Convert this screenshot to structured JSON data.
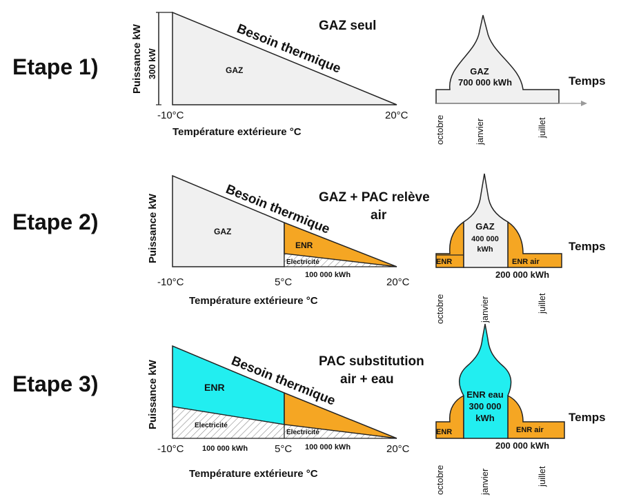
{
  "stages": [
    {
      "name": "Etape 1)",
      "title": [
        "GAZ seul"
      ],
      "y_axis": "Puissance kW",
      "scale_label": "300 kW",
      "besoin": "Besoin thermique",
      "x_ticks": [
        "-10°C",
        "20°C"
      ],
      "x_axis": "Température extérieure °C",
      "areas": {
        "gaz": "GAZ"
      },
      "annual": {
        "center": [
          "GAZ",
          "700 000 kWh"
        ]
      },
      "temps": "Temps",
      "months": [
        "octobre",
        "janvier",
        "juillet"
      ]
    },
    {
      "name": "Etape 2)",
      "title": [
        "GAZ + PAC relève",
        "air"
      ],
      "y_axis": "Puissance kW",
      "besoin": "Besoin thermique",
      "x_ticks": [
        "-10°C",
        "5°C",
        "20°C"
      ],
      "x_axis": "Température extérieure °C",
      "areas": {
        "gaz": "GAZ",
        "enr": "ENR",
        "elec": "Electricité",
        "elec_kwh": "100 000 kWh"
      },
      "annual": {
        "center": [
          "GAZ",
          "400 000",
          "kWh"
        ],
        "left": "ENR",
        "right": "ENR air",
        "below": "200 000 kWh"
      },
      "temps": "Temps",
      "months": [
        "octobre",
        "janvier",
        "juillet"
      ]
    },
    {
      "name": "Etape 3)",
      "title": [
        "PAC substitution",
        "air + eau"
      ],
      "y_axis": "Puissance kW",
      "besoin": "Besoin thermique",
      "x_ticks": [
        "-10°C",
        "5°C",
        "20°C"
      ],
      "x_axis": "Température extérieure °C",
      "areas": {
        "enr": "ENR",
        "elec_left": "Electricité",
        "elec_right": "Electricité",
        "kwh_left": "100 000 kWh",
        "kwh_right": "100 000 kWh"
      },
      "annual": {
        "center": [
          "ENR eau",
          "300 000",
          "kWh"
        ],
        "left": "ENR",
        "right": "ENR air",
        "below": "200 000 kWh"
      },
      "temps": "Temps",
      "months": [
        "octobre",
        "janvier",
        "juillet"
      ]
    }
  ],
  "colors": {
    "gaz_fill": "#f0f0f0",
    "enr_air": "#f5a623",
    "enr_eau": "#22eef0",
    "outline": "#222222"
  }
}
